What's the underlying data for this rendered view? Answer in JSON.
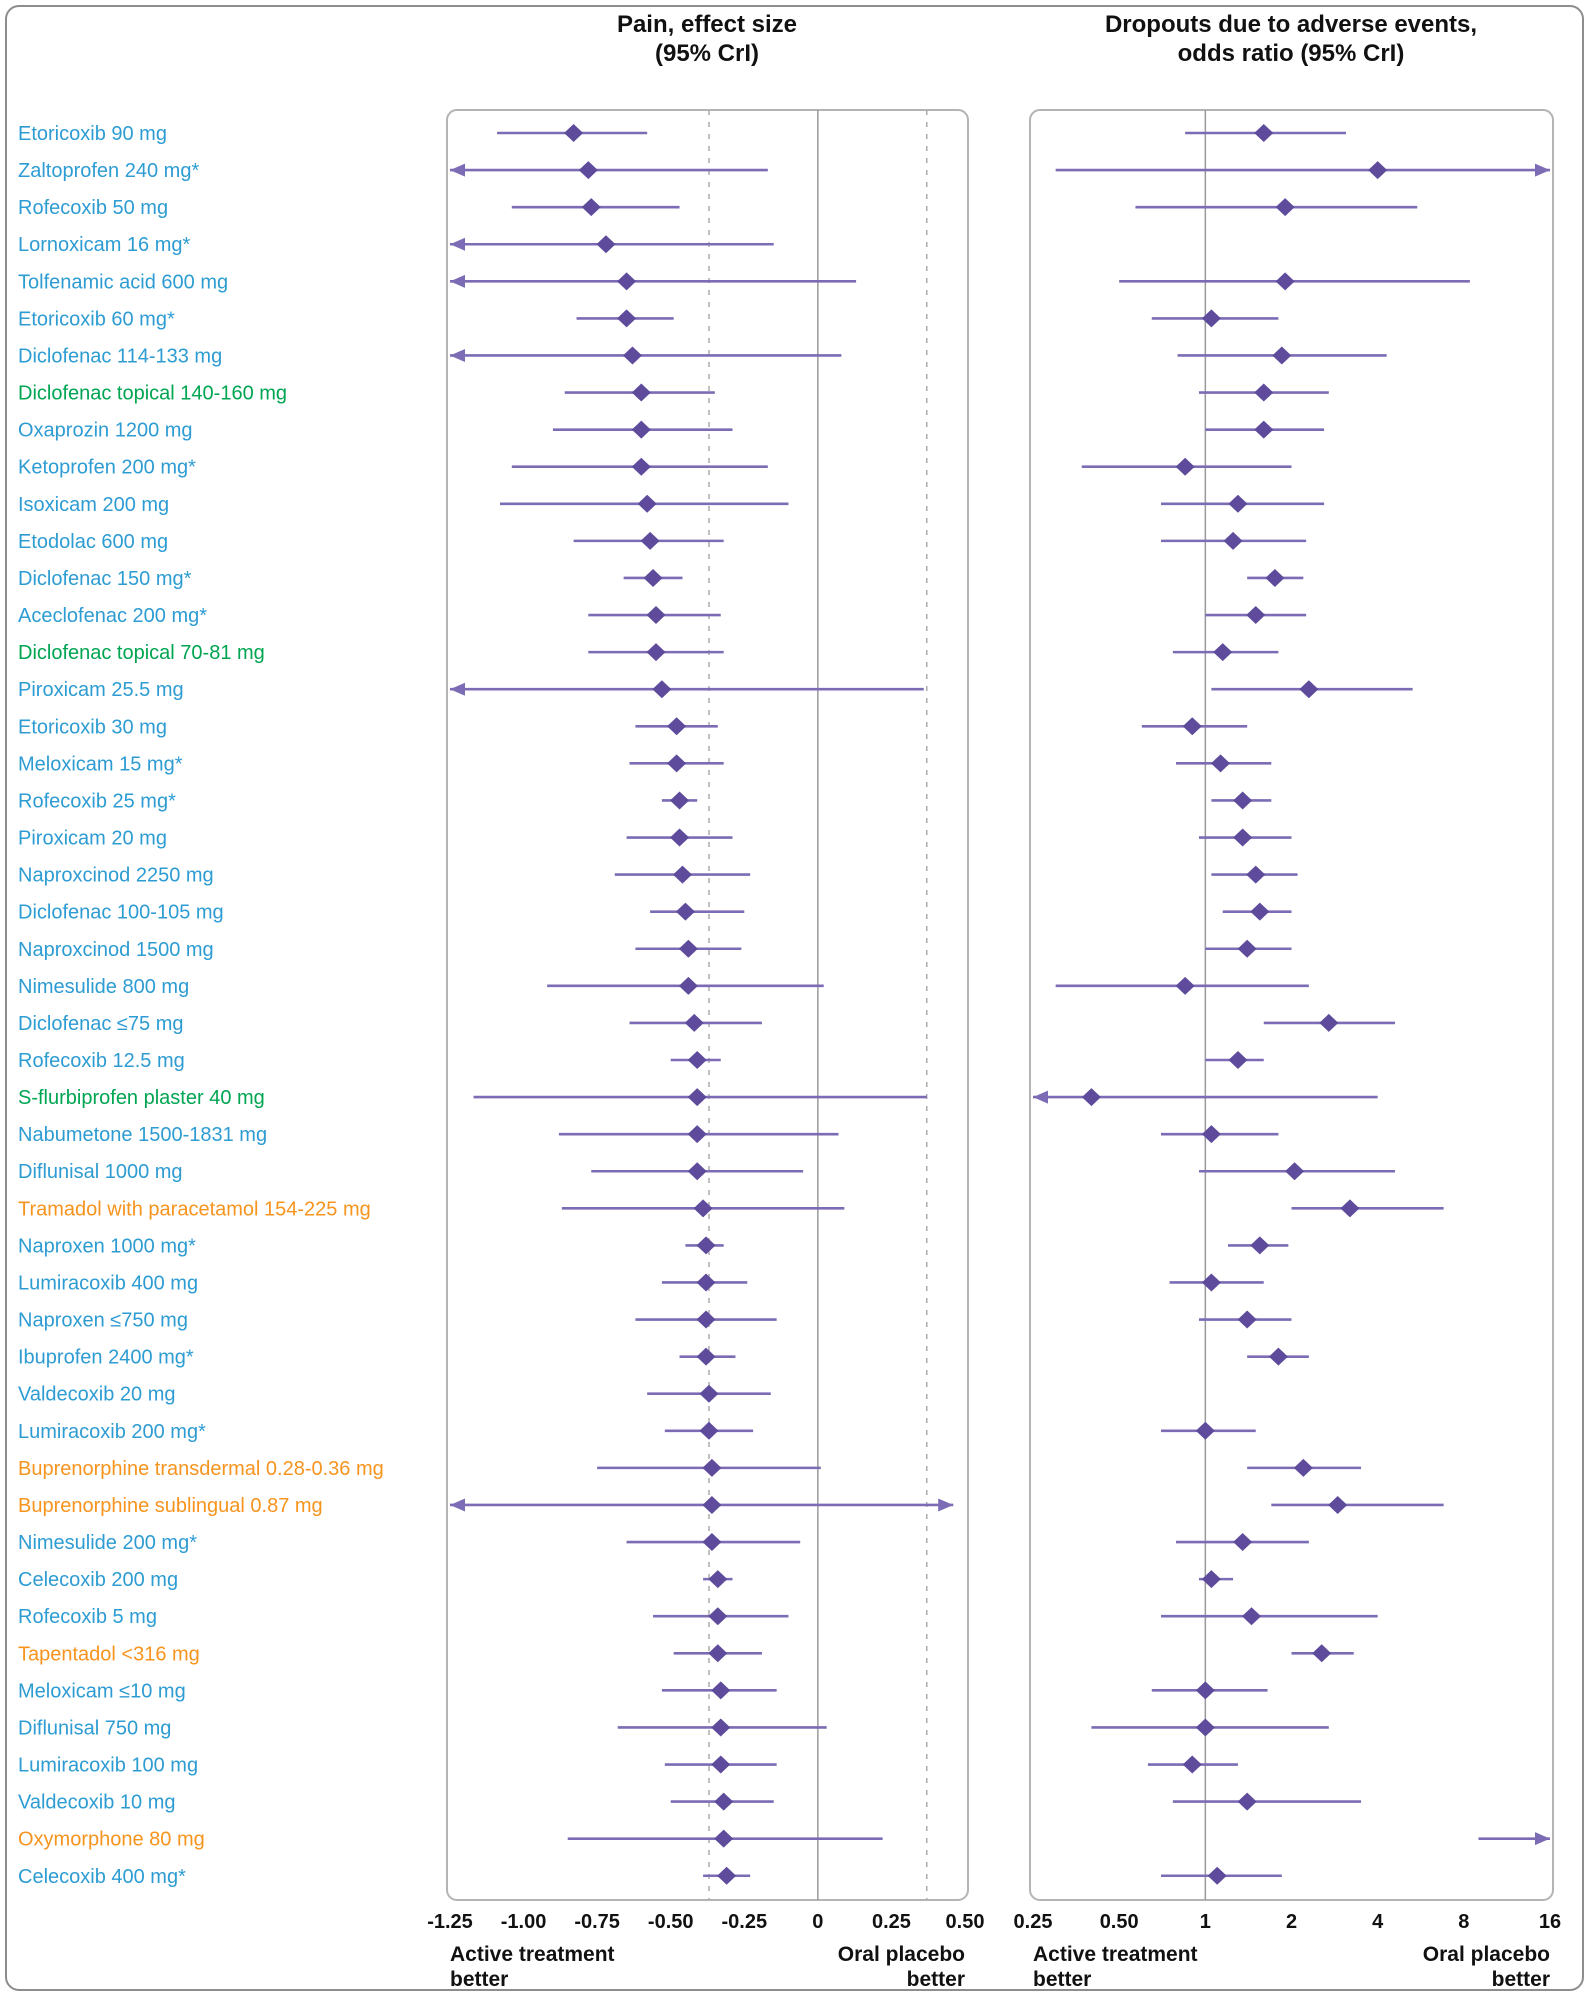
{
  "chart_data": {
    "type": "forest",
    "panels": [
      {
        "id": "pain",
        "title_lines": [
          "Pain, effect size",
          "(95% CrI)"
        ],
        "axis": {
          "scale": "linear",
          "min": -1.25,
          "max": 0.5,
          "ref": 0,
          "dashed": [
            -0.37,
            0.37
          ],
          "ticks": [
            -1.25,
            -1.0,
            -0.75,
            -0.5,
            -0.25,
            0,
            0.25,
            0.5
          ],
          "tick_labels": [
            "-1.25",
            "-1.00",
            "-0.75",
            "-0.50",
            "-0.25",
            "0",
            "0.25",
            "0.50"
          ]
        },
        "footer_left": [
          "Active treatment",
          "better"
        ],
        "footer_right": [
          "Oral placebo",
          "better"
        ]
      },
      {
        "id": "dropouts",
        "title_lines": [
          "Dropouts due to adverse events,",
          "odds ratio (95% CrI)"
        ],
        "axis": {
          "scale": "log2",
          "min": 0.25,
          "max": 16,
          "ref": 1,
          "dashed": [],
          "ticks": [
            0.25,
            0.5,
            1,
            2,
            4,
            8,
            16
          ],
          "tick_labels": [
            "0.25",
            "0.50",
            "1",
            "2",
            "4",
            "8",
            "16"
          ]
        },
        "footer_left": [
          "Active treatment",
          "better"
        ],
        "footer_right": [
          "Oral placebo",
          "better"
        ]
      }
    ],
    "group_colors": {
      "oral_nsaid": "#2D9CD3",
      "topical_nsaid": "#00A551",
      "opioid": "#F7941E"
    },
    "style": {
      "marker_color": "#5F4B9B",
      "line_color": "#7C6BB5",
      "panel_border": "#b4b4b4",
      "ref_line": "#9a9a9a",
      "dashed_line": "#ababab",
      "text_color": "#111111"
    },
    "rows": [
      {
        "label": "Etoricoxib 90 mg",
        "group": "oral_nsaid",
        "pain": {
          "est": -0.83,
          "low": -1.09,
          "high": -0.58
        },
        "dropout": {
          "est": 1.6,
          "low": 0.85,
          "high": 3.1
        }
      },
      {
        "label": "Zaltoprofen 240 mg*",
        "group": "oral_nsaid",
        "pain": {
          "est": -0.78,
          "low": -1.25,
          "high": -0.17,
          "arrow_low": true
        },
        "dropout": {
          "est": 4.0,
          "low": 0.3,
          "high": 16,
          "arrow_high": true
        }
      },
      {
        "label": "Rofecoxib 50 mg",
        "group": "oral_nsaid",
        "pain": {
          "est": -0.77,
          "low": -1.04,
          "high": -0.47
        },
        "dropout": {
          "est": 1.9,
          "low": 0.57,
          "high": 5.5
        }
      },
      {
        "label": "Lornoxicam 16 mg*",
        "group": "oral_nsaid",
        "pain": {
          "est": -0.72,
          "low": -1.25,
          "high": -0.15,
          "arrow_low": true
        },
        "dropout": null
      },
      {
        "label": "Tolfenamic acid 600 mg",
        "group": "oral_nsaid",
        "pain": {
          "est": -0.65,
          "low": -1.25,
          "high": 0.13,
          "arrow_low": true
        },
        "dropout": {
          "est": 1.9,
          "low": 0.5,
          "high": 8.4
        }
      },
      {
        "label": "Etoricoxib 60 mg*",
        "group": "oral_nsaid",
        "pain": {
          "est": -0.65,
          "low": -0.82,
          "high": -0.49
        },
        "dropout": {
          "est": 1.05,
          "low": 0.65,
          "high": 1.8
        }
      },
      {
        "label": "Diclofenac 114-133 mg",
        "group": "oral_nsaid",
        "pain": {
          "est": -0.63,
          "low": -1.25,
          "high": 0.08,
          "arrow_low": true
        },
        "dropout": {
          "est": 1.85,
          "low": 0.8,
          "high": 4.3
        }
      },
      {
        "label": "Diclofenac topical 140-160 mg",
        "group": "topical_nsaid",
        "pain": {
          "est": -0.6,
          "low": -0.86,
          "high": -0.35
        },
        "dropout": {
          "est": 1.6,
          "low": 0.95,
          "high": 2.7
        }
      },
      {
        "label": "Oxaprozin 1200 mg",
        "group": "oral_nsaid",
        "pain": {
          "est": -0.6,
          "low": -0.9,
          "high": -0.29
        },
        "dropout": {
          "est": 1.6,
          "low": 1.0,
          "high": 2.6
        }
      },
      {
        "label": "Ketoprofen 200 mg*",
        "group": "oral_nsaid",
        "pain": {
          "est": -0.6,
          "low": -1.04,
          "high": -0.17
        },
        "dropout": {
          "est": 0.85,
          "low": 0.37,
          "high": 2.0
        }
      },
      {
        "label": "Isoxicam 200 mg",
        "group": "oral_nsaid",
        "pain": {
          "est": -0.58,
          "low": -1.08,
          "high": -0.1
        },
        "dropout": {
          "est": 1.3,
          "low": 0.7,
          "high": 2.6
        }
      },
      {
        "label": "Etodolac 600 mg",
        "group": "oral_nsaid",
        "pain": {
          "est": -0.57,
          "low": -0.83,
          "high": -0.32
        },
        "dropout": {
          "est": 1.25,
          "low": 0.7,
          "high": 2.25
        }
      },
      {
        "label": "Diclofenac 150 mg*",
        "group": "oral_nsaid",
        "pain": {
          "est": -0.56,
          "low": -0.66,
          "high": -0.46
        },
        "dropout": {
          "est": 1.75,
          "low": 1.4,
          "high": 2.2
        }
      },
      {
        "label": "Aceclofenac 200 mg*",
        "group": "oral_nsaid",
        "pain": {
          "est": -0.55,
          "low": -0.78,
          "high": -0.33
        },
        "dropout": {
          "est": 1.5,
          "low": 1.0,
          "high": 2.25
        }
      },
      {
        "label": "Diclofenac topical 70-81 mg",
        "group": "topical_nsaid",
        "pain": {
          "est": -0.55,
          "low": -0.78,
          "high": -0.32
        },
        "dropout": {
          "est": 1.15,
          "low": 0.77,
          "high": 1.8
        }
      },
      {
        "label": "Piroxicam 25.5 mg",
        "group": "oral_nsaid",
        "pain": {
          "est": -0.53,
          "low": -1.25,
          "high": 0.36,
          "arrow_low": true
        },
        "dropout": {
          "est": 2.3,
          "low": 1.05,
          "high": 5.3
        }
      },
      {
        "label": "Etoricoxib 30 mg",
        "group": "oral_nsaid",
        "pain": {
          "est": -0.48,
          "low": -0.62,
          "high": -0.34
        },
        "dropout": {
          "est": 0.9,
          "low": 0.6,
          "high": 1.4
        }
      },
      {
        "label": "Meloxicam 15 mg*",
        "group": "oral_nsaid",
        "pain": {
          "est": -0.48,
          "low": -0.64,
          "high": -0.32
        },
        "dropout": {
          "est": 1.13,
          "low": 0.79,
          "high": 1.7
        }
      },
      {
        "label": "Rofecoxib 25 mg*",
        "group": "oral_nsaid",
        "pain": {
          "est": -0.47,
          "low": -0.53,
          "high": -0.41
        },
        "dropout": {
          "est": 1.35,
          "low": 1.05,
          "high": 1.7
        }
      },
      {
        "label": "Piroxicam 20 mg",
        "group": "oral_nsaid",
        "pain": {
          "est": -0.47,
          "low": -0.65,
          "high": -0.29
        },
        "dropout": {
          "est": 1.35,
          "low": 0.95,
          "high": 2.0
        }
      },
      {
        "label": "Naproxcinod 2250 mg",
        "group": "oral_nsaid",
        "pain": {
          "est": -0.46,
          "low": -0.69,
          "high": -0.23
        },
        "dropout": {
          "est": 1.5,
          "low": 1.05,
          "high": 2.1
        }
      },
      {
        "label": "Diclofenac 100-105 mg",
        "group": "oral_nsaid",
        "pain": {
          "est": -0.45,
          "low": -0.57,
          "high": -0.25
        },
        "dropout": {
          "est": 1.55,
          "low": 1.15,
          "high": 2.0
        }
      },
      {
        "label": "Naproxcinod 1500 mg",
        "group": "oral_nsaid",
        "pain": {
          "est": -0.44,
          "low": -0.62,
          "high": -0.26
        },
        "dropout": {
          "est": 1.4,
          "low": 1.0,
          "high": 2.0
        }
      },
      {
        "label": "Nimesulide 800 mg",
        "group": "oral_nsaid",
        "pain": {
          "est": -0.44,
          "low": -0.92,
          "high": 0.02
        },
        "dropout": {
          "est": 0.85,
          "low": 0.3,
          "high": 2.3
        }
      },
      {
        "label": "Diclofenac ≤75 mg",
        "group": "oral_nsaid",
        "pain": {
          "est": -0.42,
          "low": -0.64,
          "high": -0.19
        },
        "dropout": {
          "est": 2.7,
          "low": 1.6,
          "high": 4.6
        }
      },
      {
        "label": "Rofecoxib 12.5 mg",
        "group": "oral_nsaid",
        "pain": {
          "est": -0.41,
          "low": -0.5,
          "high": -0.33
        },
        "dropout": {
          "est": 1.3,
          "low": 1.0,
          "high": 1.6
        }
      },
      {
        "label": "S-flurbiprofen plaster 40 mg",
        "group": "topical_nsaid",
        "pain": {
          "est": -0.41,
          "low": -1.17,
          "high": 0.37
        },
        "dropout": {
          "est": 0.4,
          "low": 0.25,
          "high": 4.0,
          "arrow_low": true
        }
      },
      {
        "label": "Nabumetone 1500-1831 mg",
        "group": "oral_nsaid",
        "pain": {
          "est": -0.41,
          "low": -0.88,
          "high": 0.07
        },
        "dropout": {
          "est": 1.05,
          "low": 0.7,
          "high": 1.8
        }
      },
      {
        "label": "Diflunisal 1000 mg",
        "group": "oral_nsaid",
        "pain": {
          "est": -0.41,
          "low": -0.77,
          "high": -0.05
        },
        "dropout": {
          "est": 2.05,
          "low": 0.95,
          "high": 4.6
        }
      },
      {
        "label": "Tramadol with paracetamol 154-225 mg",
        "group": "opioid",
        "pain": {
          "est": -0.39,
          "low": -0.87,
          "high": 0.09
        },
        "dropout": {
          "est": 3.2,
          "low": 2.0,
          "high": 6.8
        }
      },
      {
        "label": "Naproxen 1000 mg*",
        "group": "oral_nsaid",
        "pain": {
          "est": -0.38,
          "low": -0.45,
          "high": -0.32
        },
        "dropout": {
          "est": 1.55,
          "low": 1.2,
          "high": 1.95
        }
      },
      {
        "label": "Lumiracoxib 400 mg",
        "group": "oral_nsaid",
        "pain": {
          "est": -0.38,
          "low": -0.53,
          "high": -0.24
        },
        "dropout": {
          "est": 1.05,
          "low": 0.75,
          "high": 1.6
        }
      },
      {
        "label": "Naproxen ≤750 mg",
        "group": "oral_nsaid",
        "pain": {
          "est": -0.38,
          "low": -0.62,
          "high": -0.14
        },
        "dropout": {
          "est": 1.4,
          "low": 0.95,
          "high": 2.0
        }
      },
      {
        "label": "Ibuprofen 2400 mg*",
        "group": "oral_nsaid",
        "pain": {
          "est": -0.38,
          "low": -0.47,
          "high": -0.28
        },
        "dropout": {
          "est": 1.8,
          "low": 1.4,
          "high": 2.3
        }
      },
      {
        "label": "Valdecoxib 20 mg",
        "group": "oral_nsaid",
        "pain": {
          "est": -0.37,
          "low": -0.58,
          "high": -0.16
        },
        "dropout": null
      },
      {
        "label": "Lumiracoxib 200 mg*",
        "group": "oral_nsaid",
        "pain": {
          "est": -0.37,
          "low": -0.52,
          "high": -0.22
        },
        "dropout": {
          "est": 1.0,
          "low": 0.7,
          "high": 1.5
        }
      },
      {
        "label": "Buprenorphine transdermal 0.28-0.36 mg",
        "group": "opioid",
        "pain": {
          "est": -0.36,
          "low": -0.75,
          "high": 0.01
        },
        "dropout": {
          "est": 2.2,
          "low": 1.4,
          "high": 3.5
        }
      },
      {
        "label": "Buprenorphine sublingual 0.87 mg",
        "group": "opioid",
        "pain": {
          "est": -0.36,
          "low": -1.25,
          "high": 0.46,
          "arrow_low": true,
          "arrow_high": true
        },
        "dropout": {
          "est": 2.9,
          "low": 1.7,
          "high": 6.8
        }
      },
      {
        "label": "Nimesulide 200 mg*",
        "group": "oral_nsaid",
        "pain": {
          "est": -0.36,
          "low": -0.65,
          "high": -0.06
        },
        "dropout": {
          "est": 1.35,
          "low": 0.79,
          "high": 2.3
        }
      },
      {
        "label": "Celecoxib 200 mg",
        "group": "oral_nsaid",
        "pain": {
          "est": -0.34,
          "low": -0.39,
          "high": -0.29
        },
        "dropout": {
          "est": 1.05,
          "low": 0.95,
          "high": 1.25
        }
      },
      {
        "label": "Rofecoxib 5 mg",
        "group": "oral_nsaid",
        "pain": {
          "est": -0.34,
          "low": -0.56,
          "high": -0.1
        },
        "dropout": {
          "est": 1.45,
          "low": 0.7,
          "high": 4.0
        }
      },
      {
        "label": "Tapentadol <316 mg",
        "group": "opioid",
        "pain": {
          "est": -0.34,
          "low": -0.49,
          "high": -0.19
        },
        "dropout": {
          "est": 2.55,
          "low": 2.0,
          "high": 3.3
        }
      },
      {
        "label": "Meloxicam ≤10 mg",
        "group": "oral_nsaid",
        "pain": {
          "est": -0.33,
          "low": -0.53,
          "high": -0.14
        },
        "dropout": {
          "est": 1.0,
          "low": 0.65,
          "high": 1.65
        }
      },
      {
        "label": "Diflunisal 750 mg",
        "group": "oral_nsaid",
        "pain": {
          "est": -0.33,
          "low": -0.68,
          "high": 0.03
        },
        "dropout": {
          "est": 1.0,
          "low": 0.4,
          "high": 2.7
        }
      },
      {
        "label": "Lumiracoxib 100 mg",
        "group": "oral_nsaid",
        "pain": {
          "est": -0.33,
          "low": -0.52,
          "high": -0.14
        },
        "dropout": {
          "est": 0.9,
          "low": 0.63,
          "high": 1.3
        }
      },
      {
        "label": "Valdecoxib 10 mg",
        "group": "oral_nsaid",
        "pain": {
          "est": -0.32,
          "low": -0.5,
          "high": -0.15
        },
        "dropout": {
          "est": 1.4,
          "low": 0.77,
          "high": 3.5
        }
      },
      {
        "label": "Oxymorphone 80 mg",
        "group": "opioid",
        "pain": {
          "est": -0.32,
          "low": -0.85,
          "high": 0.22
        },
        "dropout": {
          "est": null,
          "low": 9,
          "high": 16,
          "arrow_high": true
        }
      },
      {
        "label": "Celecoxib 400 mg*",
        "group": "oral_nsaid",
        "pain": {
          "est": -0.31,
          "low": -0.39,
          "high": -0.23
        },
        "dropout": {
          "est": 1.1,
          "low": 0.7,
          "high": 1.85
        }
      }
    ]
  }
}
